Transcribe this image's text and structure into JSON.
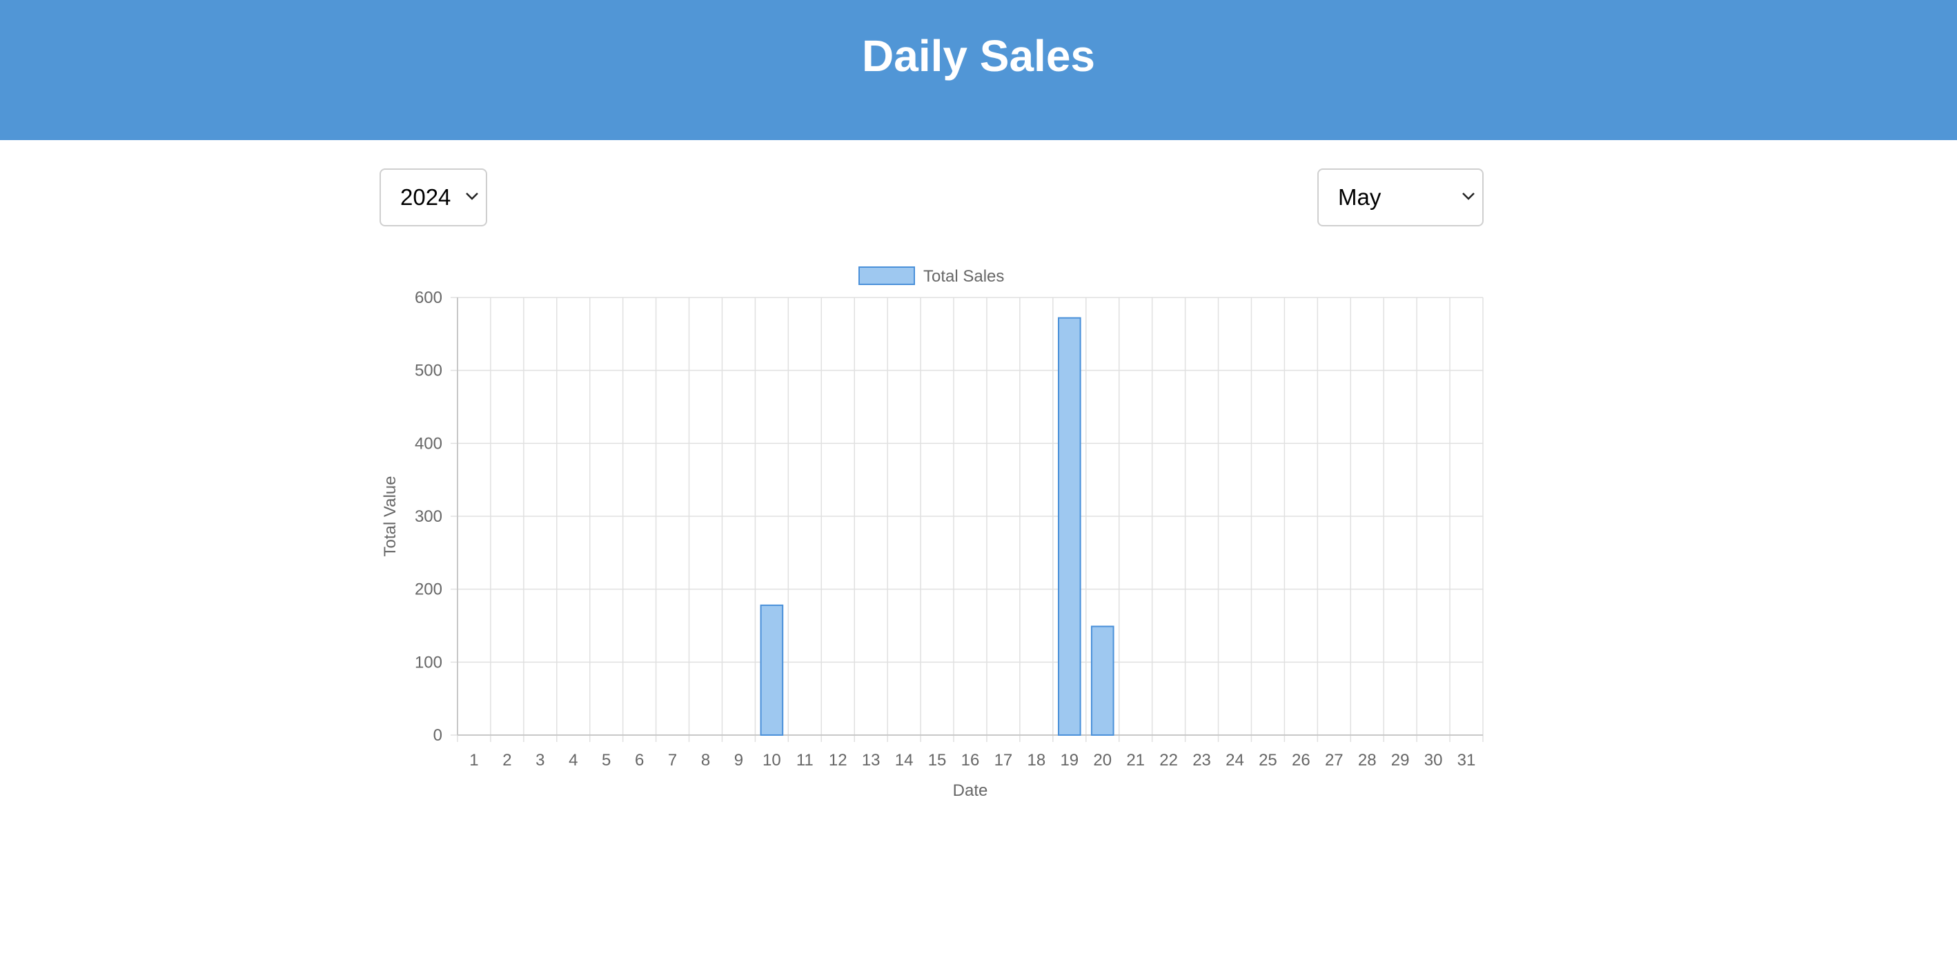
{
  "header": {
    "title": "Daily Sales"
  },
  "filters": {
    "year": {
      "selected": "2024"
    },
    "month": {
      "selected": "May"
    }
  },
  "colors": {
    "header_bg": "#5196d6",
    "bar_fill": "#9ec8f0",
    "bar_border": "#4a90d9",
    "grid": "#e0e0e0"
  },
  "chart_data": {
    "type": "bar",
    "legend": [
      "Total Sales"
    ],
    "legend_position": "top",
    "xlabel": "Date",
    "ylabel": "Total Value",
    "ylim": [
      0,
      600
    ],
    "yticks": [
      0,
      100,
      200,
      300,
      400,
      500,
      600
    ],
    "grid": true,
    "categories": [
      "1",
      "2",
      "3",
      "4",
      "5",
      "6",
      "7",
      "8",
      "9",
      "10",
      "11",
      "12",
      "13",
      "14",
      "15",
      "16",
      "17",
      "18",
      "19",
      "20",
      "21",
      "22",
      "23",
      "24",
      "25",
      "26",
      "27",
      "28",
      "29",
      "30",
      "31"
    ],
    "series": [
      {
        "name": "Total Sales",
        "values": [
          0,
          0,
          0,
          0,
          0,
          0,
          0,
          0,
          0,
          178,
          0,
          0,
          0,
          0,
          0,
          0,
          0,
          0,
          572,
          149,
          0,
          0,
          0,
          0,
          0,
          0,
          0,
          0,
          0,
          0,
          0
        ]
      }
    ]
  }
}
